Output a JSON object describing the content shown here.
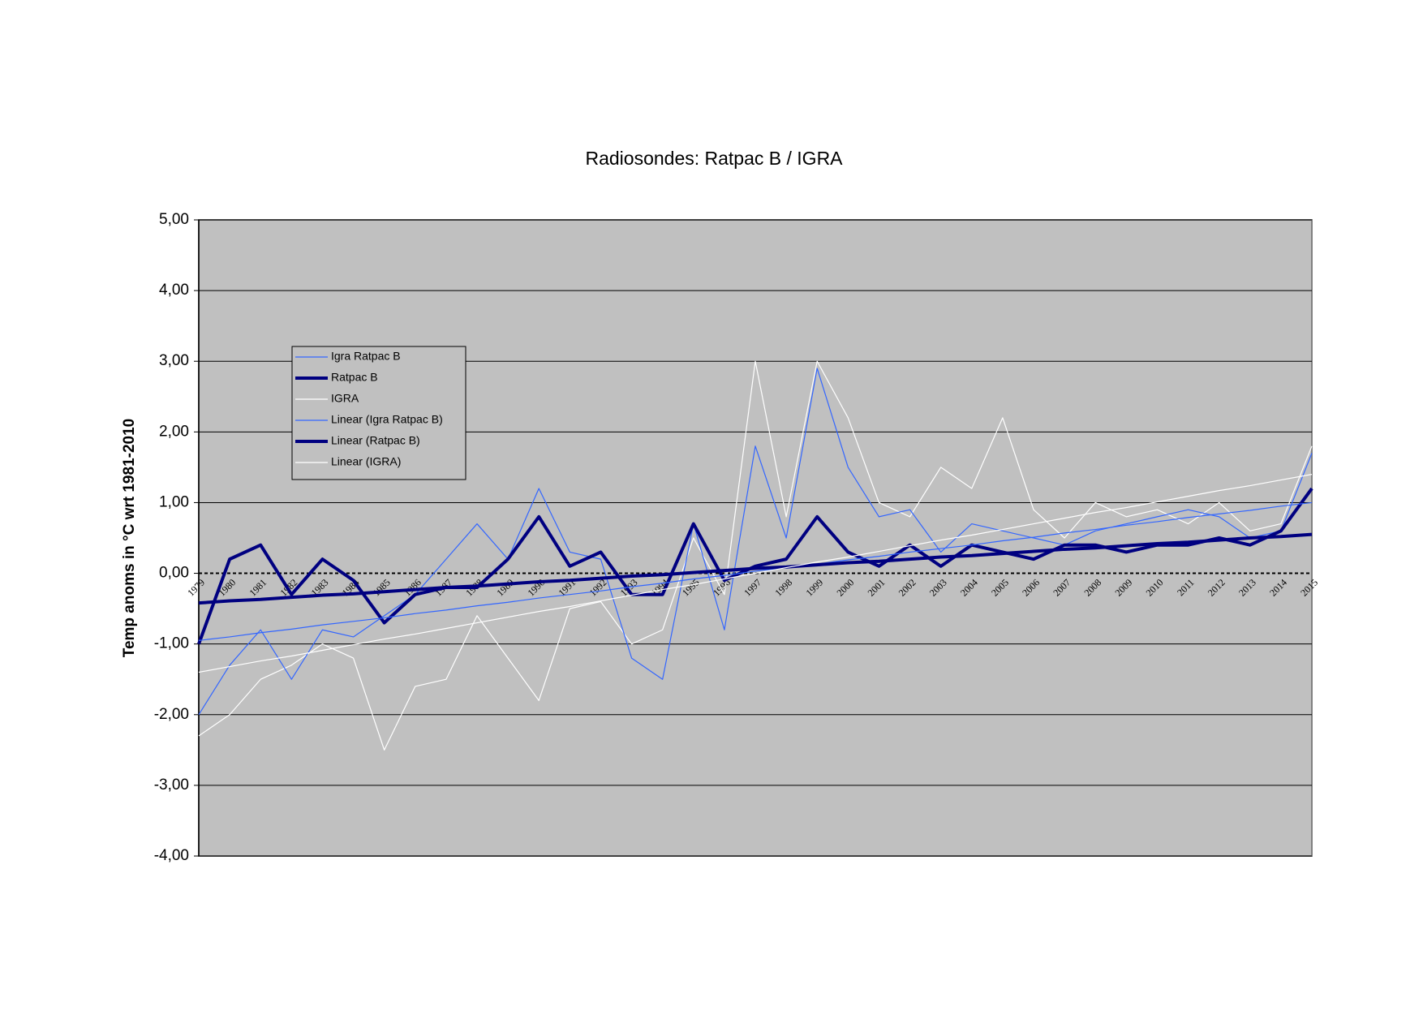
{
  "chart_data": {
    "type": "line",
    "title": "Radiosondes: Ratpac B / IGRA",
    "y_label": "Temp anoms in °C wrt 1981-2010",
    "categories": [
      "1979",
      "1980",
      "1981",
      "1982",
      "1983",
      "1984",
      "1985",
      "1986",
      "1987",
      "1988",
      "1989",
      "1990",
      "1991",
      "1992",
      "1993",
      "1994",
      "1995",
      "1996",
      "1997",
      "1998",
      "1999",
      "2000",
      "2001",
      "2002",
      "2003",
      "2004",
      "2005",
      "2006",
      "2007",
      "2008",
      "2009",
      "2010",
      "2011",
      "2012",
      "2013",
      "2014",
      "2015"
    ],
    "ylim": [
      -4,
      5
    ],
    "yticks": [
      {
        "value": -4,
        "label": "-4,00"
      },
      {
        "value": -3,
        "label": "-3,00"
      },
      {
        "value": -2,
        "label": "-2,00"
      },
      {
        "value": -1,
        "label": "-1,00"
      },
      {
        "value": 0,
        "label": "0,00"
      },
      {
        "value": 1,
        "label": "1,00"
      },
      {
        "value": 2,
        "label": "2,00"
      },
      {
        "value": 3,
        "label": "3,00"
      },
      {
        "value": 4,
        "label": "4,00"
      },
      {
        "value": 5,
        "label": "5,00"
      }
    ],
    "grid": true,
    "legend": "upper left",
    "series": [
      {
        "name": "IGRA",
        "color": "#ffffff",
        "width": 1.2,
        "values": [
          -2.3,
          -2.0,
          -1.5,
          -1.3,
          -1.0,
          -1.2,
          -2.5,
          -1.6,
          -1.5,
          -0.6,
          -1.2,
          -1.8,
          -0.5,
          -0.4,
          -1.0,
          -0.8,
          0.5,
          -0.3,
          3.0,
          0.8,
          3.0,
          2.2,
          1.0,
          0.8,
          1.5,
          1.2,
          2.2,
          0.9,
          0.5,
          1.0,
          0.8,
          0.9,
          0.7,
          1.0,
          0.6,
          0.7,
          1.8
        ]
      },
      {
        "name": "Igra Ratpac B",
        "color": "#3366ff",
        "width": 1.2,
        "values": [
          -2.0,
          -1.3,
          -0.8,
          -1.5,
          -0.8,
          -0.9,
          -0.6,
          -0.3,
          0.2,
          0.7,
          0.2,
          1.2,
          0.3,
          0.2,
          -1.2,
          -1.5,
          0.7,
          -0.8,
          1.8,
          0.5,
          2.9,
          1.5,
          0.8,
          0.9,
          0.3,
          0.7,
          0.6,
          0.5,
          0.4,
          0.6,
          0.7,
          0.8,
          0.9,
          0.8,
          0.5,
          0.6,
          1.7
        ]
      },
      {
        "name": "Ratpac B",
        "color": "#000080",
        "width": 4,
        "values": [
          -1.0,
          0.2,
          0.4,
          -0.3,
          0.2,
          -0.1,
          -0.7,
          -0.3,
          -0.2,
          -0.2,
          0.2,
          0.8,
          0.1,
          0.3,
          -0.3,
          -0.3,
          0.7,
          -0.1,
          0.1,
          0.2,
          0.8,
          0.3,
          0.1,
          0.4,
          0.1,
          0.4,
          0.3,
          0.2,
          0.4,
          0.4,
          0.3,
          0.4,
          0.4,
          0.5,
          0.4,
          0.6,
          1.2
        ]
      },
      {
        "name": "Linear (Igra Ratpac B)",
        "color": "#3366ff",
        "width": 1.2,
        "values": [
          -0.95,
          -0.9,
          -0.84,
          -0.79,
          -0.73,
          -0.68,
          -0.63,
          -0.57,
          -0.52,
          -0.46,
          -0.41,
          -0.35,
          -0.3,
          -0.25,
          -0.19,
          -0.14,
          -0.08,
          -0.03,
          0.03,
          0.08,
          0.13,
          0.19,
          0.24,
          0.3,
          0.35,
          0.4,
          0.46,
          0.51,
          0.57,
          0.62,
          0.68,
          0.73,
          0.79,
          0.84,
          0.89,
          0.95,
          1.0
        ]
      },
      {
        "name": "Linear (Ratpac B)",
        "color": "#000080",
        "width": 4,
        "values": [
          -0.42,
          -0.39,
          -0.37,
          -0.34,
          -0.31,
          -0.29,
          -0.26,
          -0.23,
          -0.2,
          -0.18,
          -0.15,
          -0.12,
          -0.1,
          -0.07,
          -0.04,
          -0.02,
          0.01,
          0.04,
          0.07,
          0.09,
          0.12,
          0.15,
          0.17,
          0.2,
          0.23,
          0.25,
          0.28,
          0.31,
          0.34,
          0.36,
          0.39,
          0.42,
          0.44,
          0.47,
          0.5,
          0.52,
          0.55
        ]
      },
      {
        "name": "Linear (IGRA)",
        "color": "#ffffff",
        "width": 1.2,
        "values": [
          -1.4,
          -1.32,
          -1.24,
          -1.17,
          -1.09,
          -1.01,
          -0.93,
          -0.86,
          -0.78,
          -0.7,
          -0.62,
          -0.54,
          -0.47,
          -0.39,
          -0.31,
          -0.23,
          -0.16,
          -0.08,
          0,
          0.08,
          0.16,
          0.23,
          0.31,
          0.39,
          0.47,
          0.54,
          0.62,
          0.7,
          0.78,
          0.86,
          0.93,
          1.01,
          1.09,
          1.17,
          1.24,
          1.32,
          1.4
        ]
      }
    ]
  }
}
